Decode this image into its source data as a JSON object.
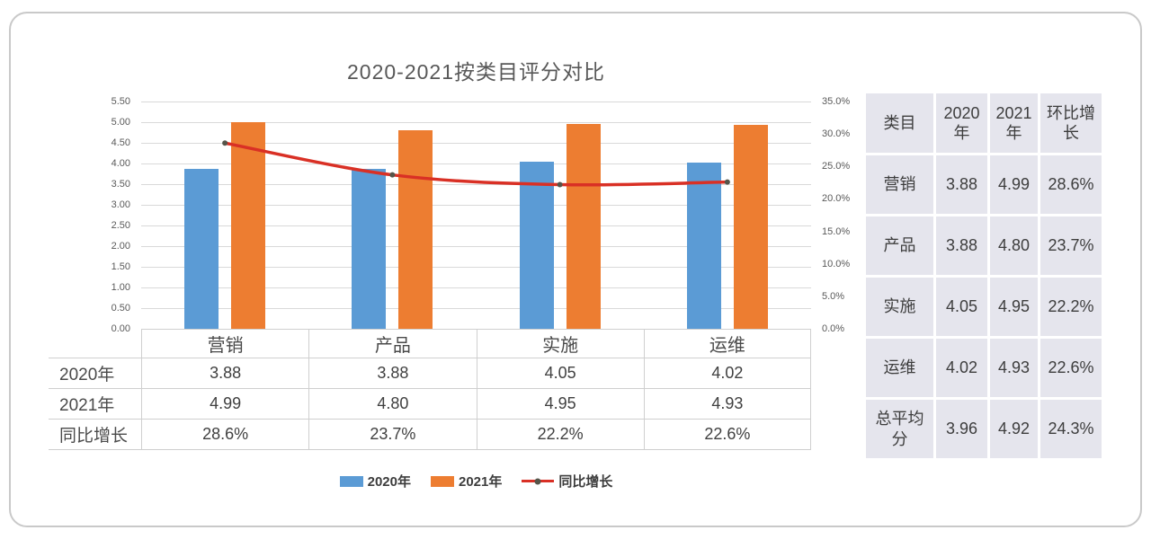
{
  "card": {
    "border_color": "#c9c9c9",
    "background": "#ffffff"
  },
  "chart_data": {
    "type": "combo-bar-line",
    "title": "2020-2021按类目评分对比",
    "categories": [
      "营销",
      "产品",
      "实施",
      "运维"
    ],
    "category_keys": [
      "marketing",
      "product",
      "implementation",
      "operations"
    ],
    "series": [
      {
        "key": "y2020",
        "name": "2020年",
        "type": "bar",
        "axis": "left",
        "color": "#5b9bd5",
        "values": [
          3.88,
          3.88,
          4.05,
          4.02
        ]
      },
      {
        "key": "y2021",
        "name": "2021年",
        "type": "bar",
        "axis": "left",
        "color": "#ed7d31",
        "values": [
          4.99,
          4.8,
          4.95,
          4.93
        ]
      },
      {
        "key": "yoy-growth",
        "name": "同比增长",
        "type": "line",
        "axis": "right",
        "color": "#d93025",
        "marker_color": "#55554a",
        "unit": "%",
        "values": [
          28.6,
          23.7,
          22.2,
          22.6
        ]
      }
    ],
    "left_axis": {
      "min": 0,
      "max": 5.5,
      "step": 0.5,
      "tick_labels": [
        "5.50",
        "5.00",
        "4.50",
        "4.00",
        "3.50",
        "3.00",
        "2.50",
        "2.00",
        "1.50",
        "1.00",
        "0.50",
        "0.00"
      ]
    },
    "right_axis": {
      "min": 0,
      "max": 35,
      "step": 5,
      "tick_labels": [
        "35.0%",
        "30.0%",
        "25.0%",
        "20.0%",
        "15.0%",
        "10.0%",
        "5.0%",
        "0.0%"
      ]
    },
    "grid": true,
    "legend_position": "bottom",
    "legend": [
      "2020年",
      "2021年",
      "同比增长"
    ],
    "data_table": {
      "row_labels": [
        "2020年",
        "2021年",
        "同比增长"
      ],
      "rows": [
        [
          "3.88",
          "3.88",
          "4.05",
          "4.02"
        ],
        [
          "4.99",
          "4.80",
          "4.95",
          "4.93"
        ],
        [
          "28.6%",
          "23.7%",
          "22.2%",
          "22.6%"
        ]
      ]
    }
  },
  "side_table": {
    "headers": [
      "类目",
      "2020年",
      "2021年",
      "环比增长"
    ],
    "header_keys": [
      "category",
      "y2020",
      "y2021",
      "mom-growth"
    ],
    "cell_fill": "#e5e5ed",
    "rows": [
      {
        "key": "marketing",
        "cells": [
          "营销",
          "3.88",
          "4.99",
          "28.6%"
        ]
      },
      {
        "key": "product",
        "cells": [
          "产品",
          "3.88",
          "4.80",
          "23.7%"
        ]
      },
      {
        "key": "implementation",
        "cells": [
          "实施",
          "4.05",
          "4.95",
          "22.2%"
        ]
      },
      {
        "key": "operations",
        "cells": [
          "运维",
          "4.02",
          "4.93",
          "22.6%"
        ]
      },
      {
        "key": "total-average",
        "cells": [
          "总平均分",
          "3.96",
          "4.92",
          "24.3%"
        ]
      }
    ]
  }
}
